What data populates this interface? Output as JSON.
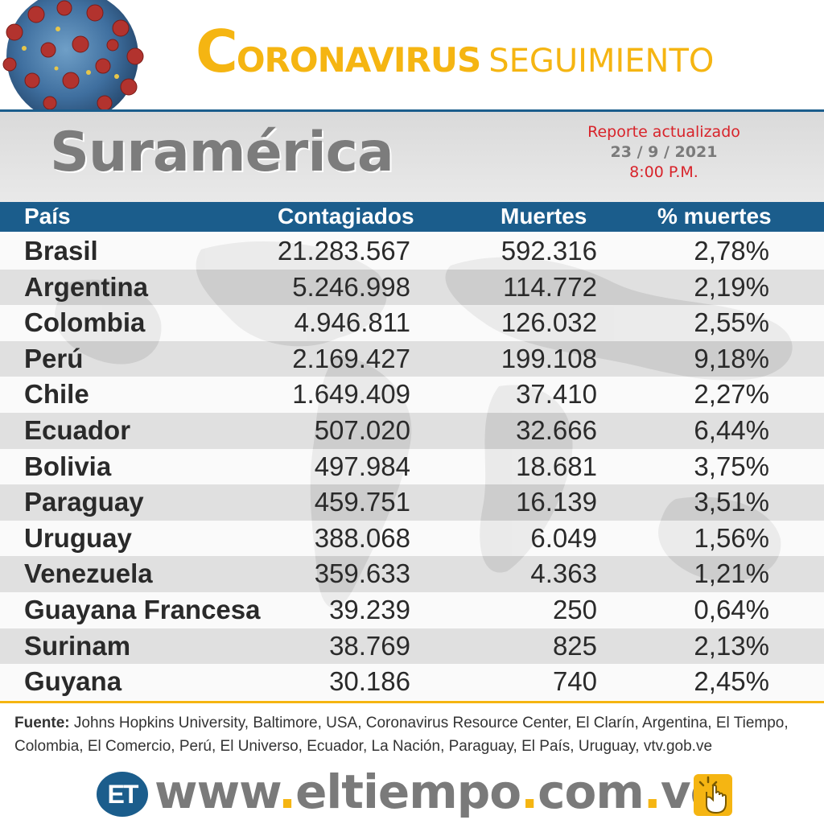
{
  "header": {
    "title_initial": "C",
    "title_rest": "ORONAVIRUS",
    "title_second": "SEGUIMIENTO",
    "virus_icon": "coronavirus-icon"
  },
  "subheader": {
    "region": "Suramérica",
    "report_label": "Reporte actualizado",
    "report_date": "23  / 9 / 2021",
    "report_time": "8:00 P.M."
  },
  "table": {
    "headers": {
      "pais": "País",
      "contagiados": "Contagiados",
      "muertes": "Muertes",
      "pct_muertes": "% muertes"
    },
    "rows": [
      {
        "pais": "Brasil",
        "contagiados": "21.283.567",
        "muertes": "592.316",
        "pct": "2,78%"
      },
      {
        "pais": "Argentina",
        "contagiados": "5.246.998",
        "muertes": "114.772",
        "pct": "2,19%"
      },
      {
        "pais": "Colombia",
        "contagiados": "4.946.811",
        "muertes": "126.032",
        "pct": "2,55%"
      },
      {
        "pais": "Perú",
        "contagiados": "2.169.427",
        "muertes": "199.108",
        "pct": "9,18%"
      },
      {
        "pais": "Chile",
        "contagiados": "1.649.409",
        "muertes": "37.410",
        "pct": "2,27%"
      },
      {
        "pais": "Ecuador",
        "contagiados": "507.020",
        "muertes": "32.666",
        "pct": "6,44%"
      },
      {
        "pais": "Bolivia",
        "contagiados": "497.984",
        "muertes": "18.681",
        "pct": "3,75%"
      },
      {
        "pais": "Paraguay",
        "contagiados": "459.751",
        "muertes": "16.139",
        "pct": "3,51%"
      },
      {
        "pais": "Uruguay",
        "contagiados": "388.068",
        "muertes": "6.049",
        "pct": "1,56%"
      },
      {
        "pais": "Venezuela",
        "contagiados": "359.633",
        "muertes": "4.363",
        "pct": "1,21%"
      },
      {
        "pais": "Guayana Francesa",
        "contagiados": "39.239",
        "muertes": "250",
        "pct": "0,64%"
      },
      {
        "pais": "Surinam",
        "contagiados": "38.769",
        "muertes": "825",
        "pct": "2,13%"
      },
      {
        "pais": "Guyana",
        "contagiados": "30.186",
        "muertes": "740",
        "pct": "2,45%"
      }
    ]
  },
  "source": {
    "label": "Fuente:",
    "text": " Johns Hopkins University, Baltimore, USA, Coronavirus Resource Center,  El Clarín, Argentina, El Tiempo, Colombia, El Comercio, Perú, El Universo, Ecuador, La Nación, Paraguay, El País, Uruguay, vtv.gob.ve"
  },
  "footer": {
    "logo_text": "ET",
    "site_part1": "www",
    "site_part2": "eltiempo",
    "site_part3": "com",
    "site_part4": "ve",
    "dot": ".",
    "click_icon": "hand-click-icon"
  },
  "colors": {
    "accent_yellow": "#f5b512",
    "header_blue": "#1b5d8c",
    "report_red": "#d8232a",
    "region_gray": "#7c7c7c"
  }
}
